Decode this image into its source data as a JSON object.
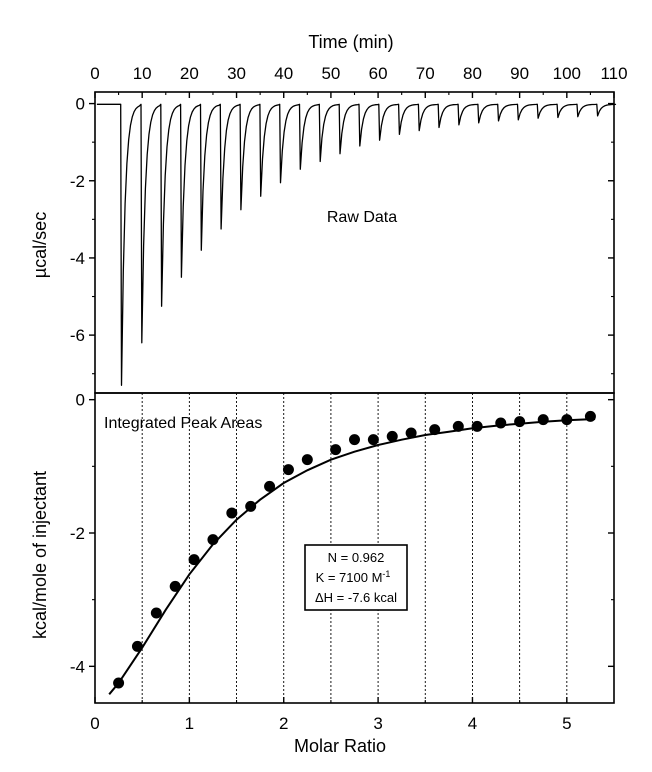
{
  "chart_data": [
    {
      "type": "line",
      "id": "raw",
      "xlabel": "Time (min)",
      "ylabel": "µcal/sec",
      "annotation": "Raw Data",
      "xlim": [
        0,
        110
      ],
      "ylim": [
        -7.5,
        0.3
      ],
      "xticks": [
        0,
        10,
        20,
        30,
        40,
        50,
        60,
        70,
        80,
        90,
        100,
        110
      ],
      "yticks": [
        0,
        -2,
        -4,
        -6
      ],
      "xtick_labels": [
        "0",
        "10",
        "20",
        "30",
        "40",
        "50",
        "60",
        "70",
        "80",
        "90",
        "100",
        "110"
      ],
      "ytick_labels": [
        "0",
        "-2",
        "-4",
        "-6"
      ],
      "baseline": -0.02,
      "injection_times": [
        5.5,
        9.8,
        14,
        18.2,
        22.4,
        26.6,
        30.8,
        35,
        39.2,
        43.4,
        47.6,
        51.8,
        56,
        60.2,
        64.4,
        68.6,
        72.8,
        77,
        81.2,
        85.4,
        89.6,
        93.8,
        98,
        102.2,
        106.4
      ],
      "peak_minima": [
        -7.3,
        -6.2,
        -5.25,
        -4.5,
        -3.8,
        -3.25,
        -2.75,
        -2.4,
        -2.05,
        -1.7,
        -1.5,
        -1.3,
        -1.1,
        -0.95,
        -0.8,
        -0.7,
        -0.62,
        -0.55,
        -0.5,
        -0.45,
        -0.42,
        -0.38,
        -0.36,
        -0.34,
        -0.32
      ]
    },
    {
      "type": "scatter",
      "id": "integrated",
      "xlabel": "Molar Ratio",
      "ylabel": "kcal/mole of injectant",
      "annotation": "Integrated Peak Areas",
      "xlim": [
        0,
        5.5
      ],
      "ylim": [
        -4.55,
        0.1
      ],
      "xticks": [
        0,
        1,
        2,
        3,
        4,
        5
      ],
      "yticks": [
        0,
        -2,
        -4
      ],
      "xtick_labels": [
        "0",
        "1",
        "2",
        "3",
        "4",
        "5"
      ],
      "ytick_labels": [
        "0",
        "-2",
        "-4"
      ],
      "vertical_gridlines": [
        0.5,
        1,
        1.5,
        2,
        2.5,
        3,
        3.5,
        4,
        4.5,
        5
      ],
      "points": {
        "x": [
          0.25,
          0.45,
          0.65,
          0.85,
          1.05,
          1.25,
          1.45,
          1.65,
          1.85,
          2.05,
          2.25,
          2.55,
          2.75,
          2.95,
          3.15,
          3.35,
          3.6,
          3.85,
          4.05,
          4.3,
          4.5,
          4.75,
          5.0,
          5.25
        ],
        "y": [
          -4.25,
          -3.7,
          -3.2,
          -2.8,
          -2.4,
          -2.1,
          -1.7,
          -1.6,
          -1.3,
          -1.05,
          -0.9,
          -0.75,
          -0.6,
          -0.6,
          -0.55,
          -0.5,
          -0.45,
          -0.4,
          -0.4,
          -0.35,
          -0.33,
          -0.3,
          -0.3,
          -0.25
        ]
      },
      "fit": {
        "x": [
          0.15,
          0.25,
          0.5,
          0.75,
          1.0,
          1.25,
          1.5,
          1.75,
          2.0,
          2.25,
          2.5,
          2.75,
          3.0,
          3.25,
          3.5,
          3.75,
          4.0,
          4.25,
          4.5,
          4.75,
          5.0,
          5.3
        ],
        "y": [
          -4.42,
          -4.25,
          -3.72,
          -3.15,
          -2.62,
          -2.17,
          -1.8,
          -1.5,
          -1.25,
          -1.06,
          -0.9,
          -0.78,
          -0.68,
          -0.6,
          -0.53,
          -0.48,
          -0.43,
          -0.39,
          -0.36,
          -0.33,
          -0.31,
          -0.29
        ]
      },
      "legend_box": {
        "n_line": "N = 0.962",
        "k_main": "K = 7100 M",
        "k_sup": "-1",
        "dh_line": "ΔH = -7.6 kcal"
      }
    }
  ]
}
